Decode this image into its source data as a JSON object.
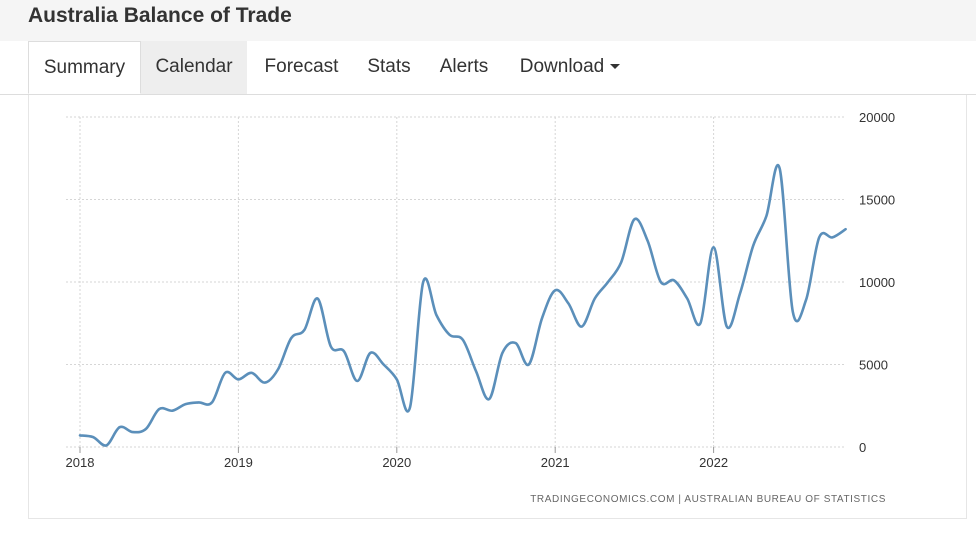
{
  "header": {
    "title": "Australia Balance of Trade"
  },
  "tabs": [
    {
      "label": "Summary",
      "active": true
    },
    {
      "label": "Calendar",
      "active": false
    },
    {
      "label": "Forecast",
      "active": false
    },
    {
      "label": "Stats",
      "active": false
    },
    {
      "label": "Alerts",
      "active": false
    },
    {
      "label": "Download",
      "active": false
    }
  ],
  "source": "TRADINGECONOMICS.COM  |  AUSTRALIAN BUREAU OF STATISTICS",
  "colors": {
    "line": "#5b8fba",
    "grid": "#d6d6d6",
    "axis_text": "#333333"
  },
  "chart_data": {
    "type": "line",
    "title": "",
    "xlabel": "",
    "ylabel": "",
    "ylim": [
      0,
      20000
    ],
    "yticks": [
      0,
      5000,
      10000,
      15000,
      20000
    ],
    "ytick_labels": [
      "0",
      "5000",
      "10000",
      "15000",
      "20000"
    ],
    "xtick_labels": [
      "2018",
      "2019",
      "2020",
      "2021",
      "2022"
    ],
    "grid": true,
    "y_axis_side": "right",
    "series": [
      {
        "x": [
          "2018-01",
          "2018-02",
          "2018-03",
          "2018-04",
          "2018-05",
          "2018-06",
          "2018-07",
          "2018-08",
          "2018-09",
          "2018-10",
          "2018-11",
          "2018-12",
          "2019-01",
          "2019-02",
          "2019-03",
          "2019-04",
          "2019-05",
          "2019-06",
          "2019-07",
          "2019-08",
          "2019-09",
          "2019-10",
          "2019-11",
          "2019-12",
          "2020-01",
          "2020-02",
          "2020-03",
          "2020-04",
          "2020-05",
          "2020-06",
          "2020-07",
          "2020-08",
          "2020-09",
          "2020-10",
          "2020-11",
          "2020-12",
          "2021-01",
          "2021-02",
          "2021-03",
          "2021-04",
          "2021-05",
          "2021-06",
          "2021-07",
          "2021-08",
          "2021-09",
          "2021-10",
          "2021-11",
          "2021-12",
          "2022-01",
          "2022-02",
          "2022-03",
          "2022-04",
          "2022-05",
          "2022-06",
          "2022-07",
          "2022-08",
          "2022-09",
          "2022-10",
          "2022-11"
        ],
        "values": [
          700,
          600,
          100,
          1200,
          900,
          1100,
          2300,
          2200,
          2600,
          2700,
          2700,
          4500,
          4100,
          4500,
          3900,
          4700,
          6600,
          7100,
          9000,
          6100,
          5800,
          4000,
          5700,
          5000,
          4100,
          2400,
          10000,
          8000,
          6800,
          6500,
          4600,
          2900,
          5700,
          6300,
          5000,
          7800,
          9500,
          8700,
          7300,
          9000,
          10000,
          11200,
          13800,
          12500,
          10000,
          10100,
          9000,
          7500,
          12100,
          7300,
          9300,
          12200,
          14000,
          16900,
          8200,
          8900,
          12700,
          12700,
          13200
        ]
      }
    ],
    "source": "TRADINGECONOMICS.COM | AUSTRALIAN BUREAU OF STATISTICS"
  }
}
